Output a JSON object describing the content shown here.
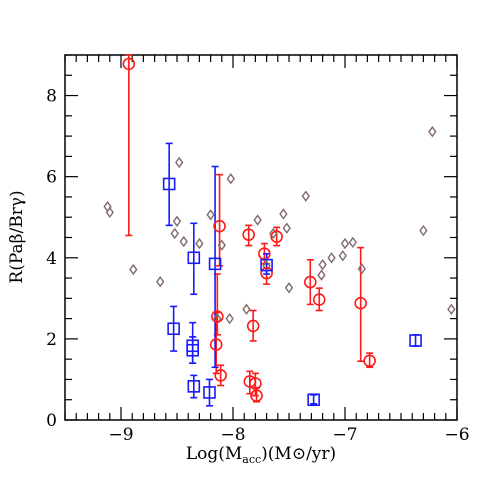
{
  "chart_data": {
    "type": "scatter",
    "xlabel": "Log(M_acc)(M⊙/yr)",
    "ylabel": "R(Paβ/Brγ)",
    "xlim": [
      -9.5,
      -6.0
    ],
    "ylim": [
      0,
      9
    ],
    "x_ticks": [
      -9,
      -8,
      -7,
      -6
    ],
    "y_ticks": [
      0,
      2,
      4,
      6,
      8
    ],
    "colors": {
      "red": "#ff1a1a",
      "blue": "#1a1aff",
      "gray": "#806a6a"
    },
    "series": [
      {
        "marker": "diamond",
        "color": "gray",
        "points": [
          {
            "x": -9.12,
            "y": 5.26
          },
          {
            "x": -9.1,
            "y": 5.12
          },
          {
            "x": -8.89,
            "y": 3.71
          },
          {
            "x": -8.65,
            "y": 3.41
          },
          {
            "x": -8.48,
            "y": 6.35
          },
          {
            "x": -8.5,
            "y": 4.9
          },
          {
            "x": -8.52,
            "y": 4.6
          },
          {
            "x": -8.44,
            "y": 4.4
          },
          {
            "x": -8.3,
            "y": 4.35
          },
          {
            "x": -8.2,
            "y": 5.06
          },
          {
            "x": -8.14,
            "y": 2.5
          },
          {
            "x": -8.1,
            "y": 4.31
          },
          {
            "x": -8.02,
            "y": 5.95
          },
          {
            "x": -8.03,
            "y": 2.5
          },
          {
            "x": -7.88,
            "y": 2.73
          },
          {
            "x": -7.78,
            "y": 4.93
          },
          {
            "x": -7.7,
            "y": 3.8
          },
          {
            "x": -7.64,
            "y": 4.6
          },
          {
            "x": -7.55,
            "y": 5.08
          },
          {
            "x": -7.52,
            "y": 4.73
          },
          {
            "x": -7.5,
            "y": 3.26
          },
          {
            "x": -7.35,
            "y": 5.52
          },
          {
            "x": -7.2,
            "y": 3.83
          },
          {
            "x": -7.21,
            "y": 3.57
          },
          {
            "x": -7.12,
            "y": 4.0
          },
          {
            "x": -7.0,
            "y": 4.35
          },
          {
            "x": -7.02,
            "y": 4.05
          },
          {
            "x": -6.93,
            "y": 4.38
          },
          {
            "x": -6.85,
            "y": 3.73
          },
          {
            "x": -6.3,
            "y": 4.67
          },
          {
            "x": -6.22,
            "y": 7.11
          },
          {
            "x": -6.05,
            "y": 2.73
          }
        ]
      },
      {
        "marker": "circle",
        "color": "red",
        "points": [
          {
            "x": -8.93,
            "y": 8.78,
            "lo": 4.55,
            "hi": 9.0
          },
          {
            "x": -8.12,
            "y": 4.78,
            "lo": 3.8,
            "hi": 6.05
          },
          {
            "x": -8.14,
            "y": 2.55,
            "lo": 2.1,
            "hi": 3.6
          },
          {
            "x": -8.15,
            "y": 1.86,
            "lo": 1.15,
            "hi": 2.65
          },
          {
            "x": -8.11,
            "y": 1.1,
            "lo": 0.85,
            "hi": 1.35
          },
          {
            "x": -7.86,
            "y": 4.57,
            "lo": 4.3,
            "hi": 4.8
          },
          {
            "x": -7.85,
            "y": 0.95,
            "lo": 0.65,
            "hi": 1.2
          },
          {
            "x": -7.82,
            "y": 2.32,
            "lo": 1.95,
            "hi": 2.7
          },
          {
            "x": -7.8,
            "y": 0.9,
            "lo": 0.6,
            "hi": 1.15
          },
          {
            "x": -7.79,
            "y": 0.6,
            "lo": 0.45,
            "hi": 0.8
          },
          {
            "x": -7.72,
            "y": 4.1,
            "lo": 3.85,
            "hi": 4.35
          },
          {
            "x": -7.7,
            "y": 3.62,
            "lo": 3.35,
            "hi": 3.85
          },
          {
            "x": -7.61,
            "y": 4.52,
            "lo": 4.3,
            "hi": 4.75
          },
          {
            "x": -7.31,
            "y": 3.4,
            "lo": 2.85,
            "hi": 3.95
          },
          {
            "x": -7.23,
            "y": 2.97,
            "lo": 2.7,
            "hi": 3.25
          },
          {
            "x": -6.86,
            "y": 2.88,
            "lo": 1.45,
            "hi": 4.25
          },
          {
            "x": -6.78,
            "y": 1.46,
            "lo": 1.3,
            "hi": 1.65
          }
        ]
      },
      {
        "marker": "square",
        "color": "blue",
        "points": [
          {
            "x": -8.57,
            "y": 5.82,
            "lo": 4.8,
            "hi": 6.82
          },
          {
            "x": -8.53,
            "y": 2.25,
            "lo": 1.7,
            "hi": 2.8
          },
          {
            "x": -8.35,
            "y": 4.0,
            "lo": 3.1,
            "hi": 4.85
          },
          {
            "x": -8.36,
            "y": 1.83,
            "lo": 1.4,
            "hi": 2.4
          },
          {
            "x": -8.36,
            "y": 1.72,
            "lo": 1.4,
            "hi": 2.05
          },
          {
            "x": -8.35,
            "y": 0.83,
            "lo": 0.55,
            "hi": 1.1
          },
          {
            "x": -8.16,
            "y": 3.85,
            "lo": 1.3,
            "hi": 6.25
          },
          {
            "x": -8.21,
            "y": 0.68,
            "lo": 0.35,
            "hi": 1.0
          },
          {
            "x": -7.7,
            "y": 3.82,
            "lo": 3.6,
            "hi": 4.1
          },
          {
            "x": -7.28,
            "y": 0.5,
            "lo": 0.4,
            "hi": 0.62
          },
          {
            "x": -6.37,
            "y": 1.96,
            "lo": 1.82,
            "hi": 2.1
          }
        ]
      }
    ]
  }
}
